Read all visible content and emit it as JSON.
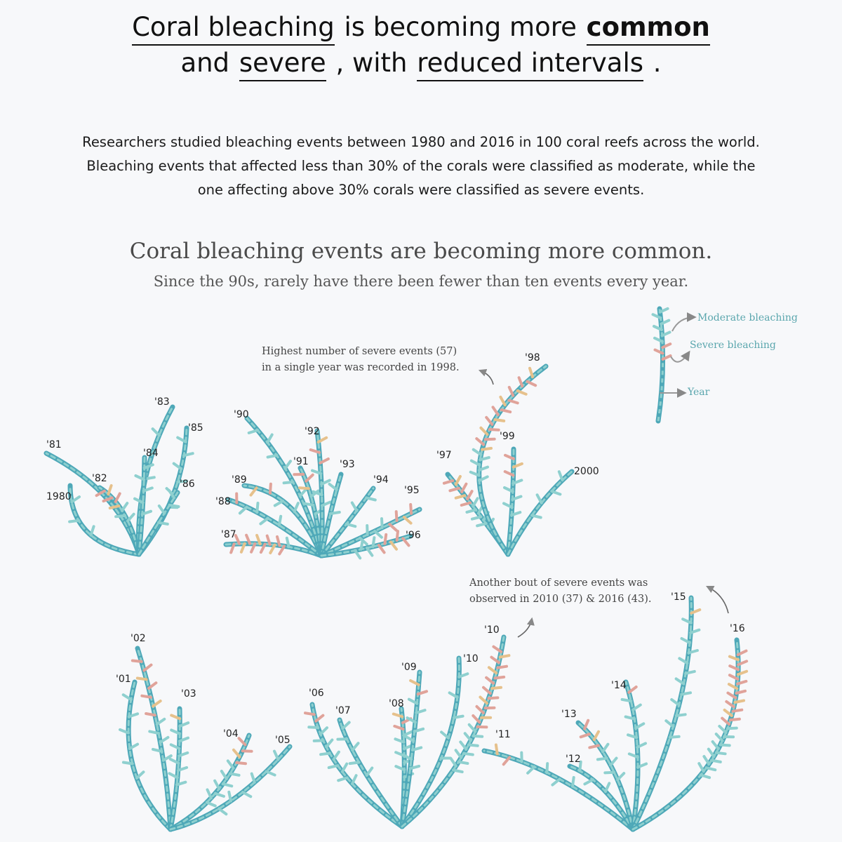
{
  "headline": {
    "line1": [
      "Coral bleaching",
      " is becoming more ",
      "common"
    ],
    "line2": [
      "and ",
      "severe",
      " , with ",
      "reduced intervals",
      " ."
    ]
  },
  "intro": {
    "line1": "Researchers studied bleaching events between 1980 and 2016 in 100 coral reefs across the world.",
    "line2": "Bleaching events that affected less than 30% of the corals were classified as moderate, while the",
    "line3": "one affecting above 30% corals were classified as severe events."
  },
  "chart": {
    "title": "Coral bleaching events are becoming more common.",
    "subtitle": "Since the 90s, rarely have there been fewer than ten events every year."
  },
  "annotations": {
    "a1_line1": "Highest number of severe events (57)",
    "a1_line2": "in a single year was recorded in 1998.",
    "a2_line1": "Another bout of severe events was",
    "a2_line2": "observed in 2010 (37) & 2016 (43)."
  },
  "legend": {
    "moderate": "Moderate bleaching",
    "severe": "Severe bleaching",
    "year": "Year"
  },
  "colors": {
    "moderate": "#4ea8b8",
    "moderate_light": "#8fd0cf",
    "severe": "#e0a39a",
    "severe_alt": "#e6c18c",
    "arrow": "#888888"
  },
  "chart_data": {
    "type": "other",
    "encoding": "one coral branch per year; leaflets on each branch count bleaching events (moderate in teal, severe in pink/orange)",
    "x": [
      "1980",
      "'81",
      "'82",
      "'83",
      "'84",
      "'85",
      "'86",
      "'87",
      "'88",
      "'89",
      "'90",
      "'91",
      "'92",
      "'93",
      "'94",
      "'95",
      "'96",
      "'97",
      "'98",
      "'99",
      "2000",
      "'01",
      "'02",
      "'03",
      "'04",
      "'05",
      "'06",
      "'07",
      "'08",
      "'09",
      "'10",
      "'11",
      "'12",
      "'13",
      "'14",
      "'15",
      "'16"
    ],
    "series": [
      {
        "name": "Moderate bleaching",
        "values": [
          3,
          0,
          3,
          2,
          5,
          6,
          4,
          1,
          4,
          2,
          6,
          3,
          4,
          2,
          3,
          4,
          4,
          7,
          6,
          5,
          4,
          6,
          5,
          9,
          8,
          6,
          10,
          5,
          7,
          8,
          10,
          5,
          3,
          5,
          8,
          12,
          13
        ]
      },
      {
        "name": "Severe bleaching",
        "values": [
          0,
          0,
          5,
          0,
          0,
          0,
          0,
          11,
          1,
          2,
          0,
          3,
          3,
          0,
          0,
          4,
          5,
          7,
          57,
          3,
          0,
          0,
          7,
          1,
          4,
          0,
          2,
          0,
          3,
          2,
          37,
          2,
          0,
          4,
          1,
          1,
          43
        ]
      }
    ]
  }
}
